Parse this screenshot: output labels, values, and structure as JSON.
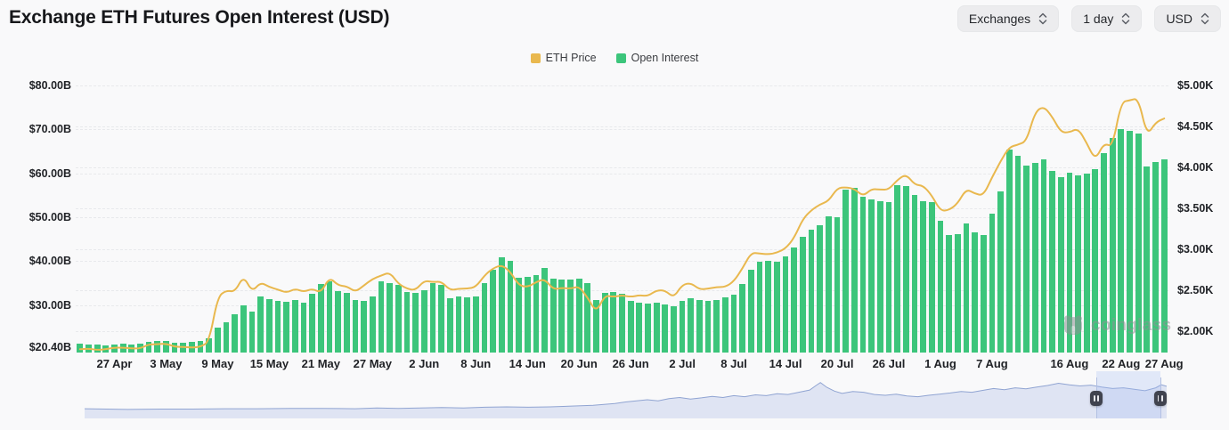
{
  "header": {
    "title": "Exchange ETH Futures Open Interest (USD)"
  },
  "controls": {
    "buttons": [
      {
        "label": "Exchanges"
      },
      {
        "label": "1 day"
      },
      {
        "label": "USD"
      }
    ]
  },
  "legend": {
    "items": [
      {
        "label": "ETH Price",
        "color": "#e9b84e"
      },
      {
        "label": "Open Interest",
        "color": "#3cc57b"
      }
    ]
  },
  "watermark": {
    "label": "coinglass"
  },
  "chart_data": {
    "type": "bar",
    "subtype": "dual-axis bar + smooth line",
    "x_axis": {
      "granularity": "1 day",
      "count": 127,
      "first_point": "23 Apr",
      "last_point": "27 Aug",
      "ticks": [
        {
          "label": "27 Apr",
          "index": 4
        },
        {
          "label": "3 May",
          "index": 10
        },
        {
          "label": "9 May",
          "index": 16
        },
        {
          "label": "15 May",
          "index": 22
        },
        {
          "label": "21 May",
          "index": 28
        },
        {
          "label": "27 May",
          "index": 34
        },
        {
          "label": "2 Jun",
          "index": 40
        },
        {
          "label": "8 Jun",
          "index": 46
        },
        {
          "label": "14 Jun",
          "index": 52
        },
        {
          "label": "20 Jun",
          "index": 58
        },
        {
          "label": "26 Jun",
          "index": 64
        },
        {
          "label": "2 Jul",
          "index": 70
        },
        {
          "label": "8 Jul",
          "index": 76
        },
        {
          "label": "14 Jul",
          "index": 82
        },
        {
          "label": "20 Jul",
          "index": 88
        },
        {
          "label": "26 Jul",
          "index": 94
        },
        {
          "label": "1 Aug",
          "index": 100
        },
        {
          "label": "7 Aug",
          "index": 106
        },
        {
          "label": "16 Aug",
          "index": 115
        },
        {
          "label": "22 Aug",
          "index": 121
        },
        {
          "label": "27 Aug",
          "index": 126
        }
      ]
    },
    "left_axis": {
      "unit": "billion USD",
      "tick_labels": [
        "$80.00B",
        "$70.00B",
        "$60.00B",
        "$50.00B",
        "$40.00B",
        "$30.00B",
        "$20.40B"
      ],
      "tick_values": [
        80,
        70,
        60,
        50,
        40,
        30,
        20.4
      ],
      "baseline_value": 19.18,
      "top_value": 81.62,
      "gridline_values": [
        80,
        70,
        60,
        50,
        40,
        30
      ]
    },
    "right_axis": {
      "unit": "thousand USD",
      "tick_labels": [
        "$5.00K",
        "$4.50K",
        "$4.00K",
        "$3.50K",
        "$3.00K",
        "$2.50K",
        "$2.00K"
      ],
      "tick_values": [
        5,
        4.5,
        4,
        3.5,
        3,
        2.5,
        2
      ],
      "baseline_value": 1.74,
      "top_value": 5.09,
      "gridline_values": [
        5,
        4.5,
        4,
        3.5,
        3,
        2.5,
        2
      ]
    },
    "series": [
      {
        "name": "Open Interest",
        "type": "bar",
        "axis": "left",
        "color": "#3cc57b",
        "values": [
          21.2,
          21.0,
          21.1,
          20.9,
          21.0,
          21.2,
          21.1,
          21.3,
          21.6,
          21.9,
          21.8,
          21.5,
          21.4,
          21.6,
          21.8,
          22.4,
          24.9,
          26.1,
          28.0,
          29.9,
          28.6,
          32.0,
          31.4,
          31.0,
          30.8,
          31.2,
          30.6,
          32.5,
          34.8,
          35.3,
          33.1,
          32.8,
          31.2,
          31.0,
          31.9,
          35.3,
          35.0,
          34.6,
          33.0,
          32.7,
          33.3,
          34.9,
          34.6,
          31.6,
          31.9,
          31.8,
          32.0,
          35.0,
          38.0,
          40.8,
          40.0,
          36.2,
          36.4,
          36.8,
          38.5,
          36.0,
          35.8,
          35.9,
          36.0,
          34.9,
          31.2,
          32.8,
          33.0,
          32.6,
          30.9,
          30.6,
          30.3,
          30.5,
          30.2,
          29.8,
          31.0,
          31.5,
          31.2,
          30.9,
          31.1,
          31.8,
          32.4,
          34.8,
          38.1,
          39.9,
          40.1,
          39.9,
          41.0,
          43.2,
          45.6,
          47.2,
          48.2,
          50.2,
          50.0,
          56.2,
          56.6,
          54.6,
          54.0,
          53.6,
          53.4,
          57.2,
          57.0,
          55.0,
          53.6,
          53.4,
          49.2,
          45.9,
          46.2,
          48.6,
          46.5,
          45.9,
          50.8,
          55.9,
          65.5,
          64.0,
          61.7,
          62.4,
          63.2,
          60.5,
          59.1,
          60.2,
          59.5,
          60.0,
          61.0,
          64.5,
          68.0,
          70.1,
          69.7,
          69.0,
          61.5,
          62.5,
          63.2
        ]
      },
      {
        "name": "ETH Price",
        "type": "line",
        "axis": "right",
        "color": "#e9b84e",
        "values": [
          1.78,
          1.79,
          1.77,
          1.78,
          1.8,
          1.8,
          1.79,
          1.79,
          1.84,
          1.84,
          1.85,
          1.81,
          1.81,
          1.8,
          1.81,
          1.87,
          2.42,
          2.5,
          2.48,
          2.68,
          2.48,
          2.6,
          2.54,
          2.51,
          2.47,
          2.52,
          2.48,
          2.52,
          2.47,
          2.66,
          2.56,
          2.55,
          2.48,
          2.56,
          2.64,
          2.68,
          2.72,
          2.58,
          2.52,
          2.5,
          2.62,
          2.6,
          2.61,
          2.5,
          2.52,
          2.52,
          2.54,
          2.68,
          2.77,
          2.81,
          2.73,
          2.56,
          2.54,
          2.6,
          2.64,
          2.51,
          2.53,
          2.52,
          2.55,
          2.41,
          2.23,
          2.44,
          2.42,
          2.44,
          2.42,
          2.44,
          2.43,
          2.5,
          2.5,
          2.41,
          2.57,
          2.59,
          2.51,
          2.52,
          2.54,
          2.54,
          2.61,
          2.77,
          2.96,
          2.95,
          2.94,
          2.96,
          3.01,
          3.14,
          3.37,
          3.48,
          3.55,
          3.59,
          3.75,
          3.76,
          3.74,
          3.65,
          3.74,
          3.73,
          3.73,
          3.85,
          3.92,
          3.79,
          3.78,
          3.66,
          3.47,
          3.48,
          3.56,
          3.74,
          3.68,
          3.66,
          3.88,
          4.08,
          4.25,
          4.28,
          4.32,
          4.68,
          4.75,
          4.62,
          4.43,
          4.43,
          4.48,
          4.3,
          4.09,
          4.3,
          4.25,
          4.8,
          4.82,
          4.85,
          4.39,
          4.55,
          4.6
        ]
      }
    ],
    "gridlines": "horizontal dashed"
  },
  "navigator": {
    "fill": "#dfe4f3",
    "line": "#90a4d2",
    "selection": {
      "start_pct": 93.5,
      "end_pct": 99.4
    },
    "points": [
      [
        0,
        0.26
      ],
      [
        2,
        0.25
      ],
      [
        4,
        0.24
      ],
      [
        7,
        0.25
      ],
      [
        10,
        0.25
      ],
      [
        13,
        0.26
      ],
      [
        16,
        0.26
      ],
      [
        19,
        0.27
      ],
      [
        22,
        0.27
      ],
      [
        25,
        0.26
      ],
      [
        27,
        0.28
      ],
      [
        29,
        0.27
      ],
      [
        31,
        0.28
      ],
      [
        33,
        0.29
      ],
      [
        35,
        0.28
      ],
      [
        37,
        0.3
      ],
      [
        39,
        0.31
      ],
      [
        41,
        0.3
      ],
      [
        43,
        0.31
      ],
      [
        45,
        0.33
      ],
      [
        47,
        0.35
      ],
      [
        49,
        0.4
      ],
      [
        50,
        0.44
      ],
      [
        51,
        0.47
      ],
      [
        52,
        0.5
      ],
      [
        53,
        0.47
      ],
      [
        54,
        0.53
      ],
      [
        55,
        0.56
      ],
      [
        56,
        0.52
      ],
      [
        57,
        0.55
      ],
      [
        58,
        0.59
      ],
      [
        59,
        0.56
      ],
      [
        60,
        0.61
      ],
      [
        61,
        0.58
      ],
      [
        62,
        0.63
      ],
      [
        63,
        0.61
      ],
      [
        64,
        0.66
      ],
      [
        65,
        0.64
      ],
      [
        66,
        0.7
      ],
      [
        67,
        0.76
      ],
      [
        67.6,
        0.88
      ],
      [
        68,
        0.96
      ],
      [
        68.6,
        0.83
      ],
      [
        69.3,
        0.73
      ],
      [
        70,
        0.67
      ],
      [
        71,
        0.72
      ],
      [
        72,
        0.7
      ],
      [
        73,
        0.64
      ],
      [
        74,
        0.62
      ],
      [
        75,
        0.65
      ],
      [
        76,
        0.6
      ],
      [
        77,
        0.58
      ],
      [
        78,
        0.62
      ],
      [
        79,
        0.65
      ],
      [
        80,
        0.68
      ],
      [
        81,
        0.72
      ],
      [
        82,
        0.7
      ],
      [
        83,
        0.75
      ],
      [
        84,
        0.8
      ],
      [
        85,
        0.77
      ],
      [
        86,
        0.82
      ],
      [
        87,
        0.79
      ],
      [
        88,
        0.84
      ],
      [
        89,
        0.88
      ],
      [
        90,
        0.94
      ],
      [
        91,
        0.9
      ],
      [
        92,
        0.87
      ],
      [
        93,
        0.89
      ],
      [
        94,
        0.84
      ],
      [
        95,
        0.8
      ],
      [
        96,
        0.82
      ],
      [
        97,
        0.78
      ],
      [
        98,
        0.74
      ],
      [
        99,
        0.82
      ],
      [
        99.5,
        0.9
      ],
      [
        100,
        0.86
      ]
    ]
  }
}
